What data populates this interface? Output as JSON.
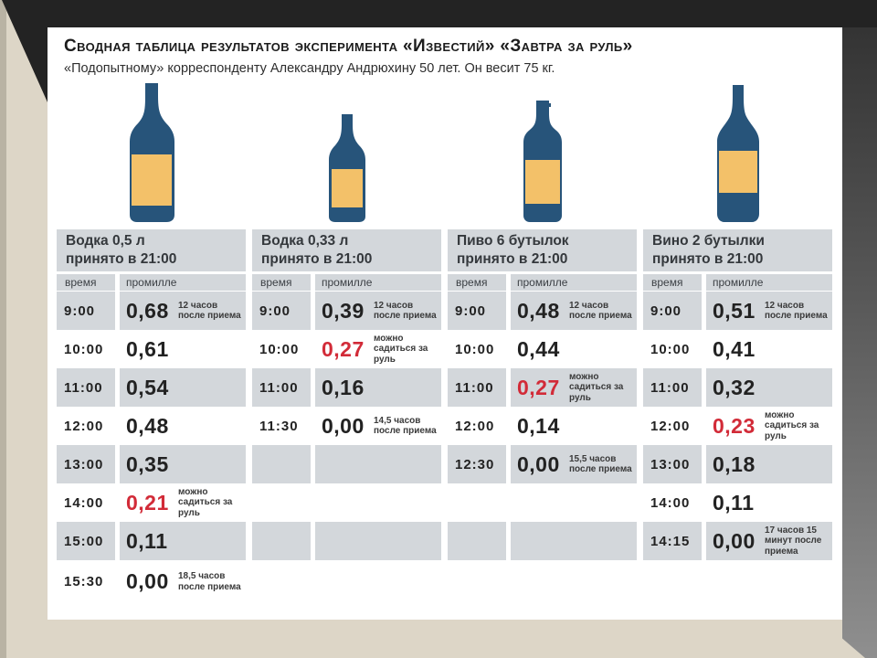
{
  "chart_data": {
    "type": "table",
    "title": "Сводная таблица результатов эксперимента «Известий» «Завтра за руль»",
    "subject": "«Подопытному» корреспонденту Александру Андрюхину 50 лет. Он весит 75 кг.",
    "sub_headers": {
      "time": "время",
      "promille": "промилле"
    },
    "legal_limit_note": "можно садиться за руль",
    "columns": [
      {
        "label": "Водка 0,5 л",
        "taken": "принято в 21:00",
        "bottle_icon": "vodka-0.5l-bottle-icon",
        "rows": [
          {
            "time": "9:00",
            "value": "0,68",
            "note": "12 часов после приема",
            "red": false
          },
          {
            "time": "10:00",
            "value": "0,61",
            "note": "",
            "red": false
          },
          {
            "time": "11:00",
            "value": "0,54",
            "note": "",
            "red": false
          },
          {
            "time": "12:00",
            "value": "0,48",
            "note": "",
            "red": false
          },
          {
            "time": "13:00",
            "value": "0,35",
            "note": "",
            "red": false
          },
          {
            "time": "14:00",
            "value": "0,21",
            "note": "можно садиться за руль",
            "red": true
          },
          {
            "time": "15:00",
            "value": "0,11",
            "note": "",
            "red": false
          },
          {
            "time": "15:30",
            "value": "0,00",
            "note": "18,5 часов после приема",
            "red": false
          }
        ]
      },
      {
        "label": "Водка 0,33 л",
        "taken": "принято в 21:00",
        "bottle_icon": "vodka-0.33l-bottle-icon",
        "rows": [
          {
            "time": "9:00",
            "value": "0,39",
            "note": "12 часов после приема",
            "red": false
          },
          {
            "time": "10:00",
            "value": "0,27",
            "note": "можно садиться за руль",
            "red": true
          },
          {
            "time": "11:00",
            "value": "0,16",
            "note": "",
            "red": false
          },
          {
            "time": "11:30",
            "value": "0,00",
            "note": "14,5 часов после приема",
            "red": false
          },
          {},
          {},
          {},
          {}
        ]
      },
      {
        "label": "Пиво 6 бутылок",
        "taken": "принято в 21:00",
        "bottle_icon": "beer-bottle-icon",
        "rows": [
          {
            "time": "9:00",
            "value": "0,48",
            "note": "12 часов после приема",
            "red": false
          },
          {
            "time": "10:00",
            "value": "0,44",
            "note": "",
            "red": false
          },
          {
            "time": "11:00",
            "value": "0,27",
            "note": "можно садиться за руль",
            "red": true
          },
          {
            "time": "12:00",
            "value": "0,14",
            "note": "",
            "red": false
          },
          {
            "time": "12:30",
            "value": "0,00",
            "note": "15,5 часов после приема",
            "red": false
          },
          {},
          {},
          {}
        ]
      },
      {
        "label": "Вино 2 бутылки",
        "taken": "принято в 21:00",
        "bottle_icon": "wine-bottle-icon",
        "rows": [
          {
            "time": "9:00",
            "value": "0,51",
            "note": "12 часов после приема",
            "red": false
          },
          {
            "time": "10:00",
            "value": "0,41",
            "note": "",
            "red": false
          },
          {
            "time": "11:00",
            "value": "0,32",
            "note": "",
            "red": false
          },
          {
            "time": "12:00",
            "value": "0,23",
            "note": "можно садиться за руль",
            "red": true
          },
          {
            "time": "13:00",
            "value": "0,18",
            "note": "",
            "red": false
          },
          {
            "time": "14:00",
            "value": "0,11",
            "note": "",
            "red": false
          },
          {
            "time": "14:15",
            "value": "0,00",
            "note": "17 часов 15 минут после приема",
            "red": false
          },
          {}
        ]
      }
    ],
    "colors": {
      "accent_red": "#d22b38",
      "row_gray": "#d3d7db",
      "bottle_navy": "#27547a",
      "bottle_label_orange": "#f3c169",
      "frame_dark": "#232323",
      "mat_cream": "#ddd6c7"
    }
  }
}
